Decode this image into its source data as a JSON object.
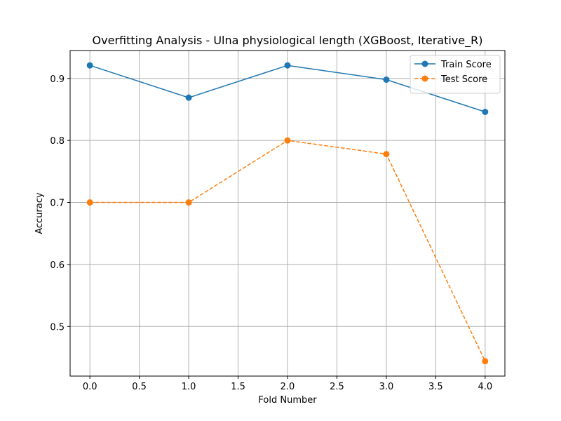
{
  "chart_data": {
    "type": "line",
    "title": "Overfitting Analysis - Ulna physiological length (XGBoost, Iterative_R)",
    "xlabel": "Fold Number",
    "ylabel": "Accuracy",
    "xlim": [
      -0.2,
      4.2
    ],
    "ylim": [
      0.42,
      0.945
    ],
    "xticks": [
      0.0,
      0.5,
      1.0,
      1.5,
      2.0,
      2.5,
      3.0,
      3.5,
      4.0
    ],
    "xtick_labels": [
      "0.0",
      "0.5",
      "1.0",
      "1.5",
      "2.0",
      "2.5",
      "3.0",
      "3.5",
      "4.0"
    ],
    "yticks": [
      0.5,
      0.6,
      0.7,
      0.8,
      0.9
    ],
    "ytick_labels": [
      "0.5",
      "0.6",
      "0.7",
      "0.8",
      "0.9"
    ],
    "grid": true,
    "legend_position": "top-right",
    "x": [
      0,
      1,
      2,
      3,
      4
    ],
    "series": [
      {
        "name": "Train Score",
        "values": [
          0.921,
          0.869,
          0.921,
          0.898,
          0.846
        ],
        "color": "#1f77b4",
        "line_style": "solid",
        "marker": "circle"
      },
      {
        "name": "Test Score",
        "values": [
          0.7,
          0.7,
          0.8,
          0.778,
          0.444
        ],
        "color": "#ff7f0e",
        "line_style": "dashed",
        "marker": "circle"
      }
    ]
  }
}
